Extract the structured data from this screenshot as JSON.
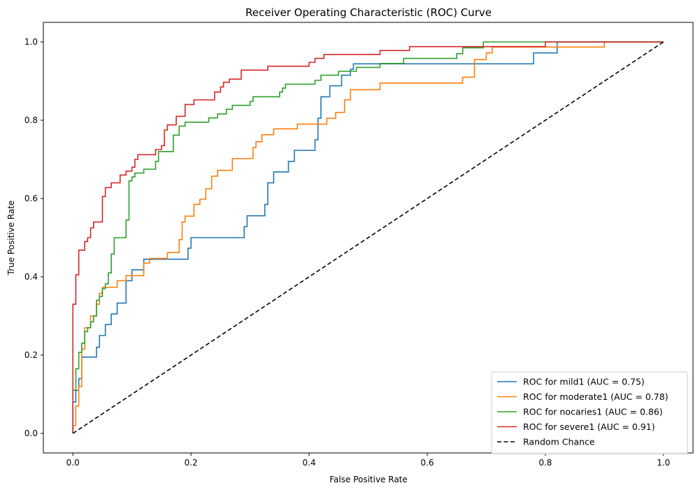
{
  "chart_data": {
    "type": "line",
    "title": "Receiver Operating Characteristic (ROC) Curve",
    "xlabel": "False Positive Rate",
    "ylabel": "True Positive Rate",
    "xlim": [
      -0.05,
      1.05
    ],
    "ylim": [
      -0.05,
      1.05
    ],
    "xticks": [
      "0.0",
      "0.2",
      "0.4",
      "0.6",
      "0.8",
      "1.0"
    ],
    "yticks": [
      "0.0",
      "0.2",
      "0.4",
      "0.6",
      "0.8",
      "1.0"
    ],
    "grid": false,
    "legend_position": "bottom-right",
    "series": [
      {
        "name": "ROC for mild1 (AUC = 0.75)",
        "color": "#1f77b4",
        "dash": "solid",
        "points": [
          [
            0,
            0
          ],
          [
            0,
            0.08
          ],
          [
            0.005,
            0.08
          ],
          [
            0.005,
            0.11
          ],
          [
            0.01,
            0.11
          ],
          [
            0.01,
            0.14
          ],
          [
            0.015,
            0.14
          ],
          [
            0.015,
            0.195
          ],
          [
            0.04,
            0.195
          ],
          [
            0.04,
            0.22
          ],
          [
            0.045,
            0.22
          ],
          [
            0.045,
            0.25
          ],
          [
            0.055,
            0.25
          ],
          [
            0.055,
            0.278
          ],
          [
            0.065,
            0.278
          ],
          [
            0.065,
            0.305
          ],
          [
            0.075,
            0.305
          ],
          [
            0.075,
            0.333
          ],
          [
            0.09,
            0.333
          ],
          [
            0.09,
            0.39
          ],
          [
            0.1,
            0.39
          ],
          [
            0.1,
            0.418
          ],
          [
            0.12,
            0.418
          ],
          [
            0.12,
            0.445
          ],
          [
            0.195,
            0.445
          ],
          [
            0.195,
            0.473
          ],
          [
            0.2,
            0.473
          ],
          [
            0.2,
            0.5
          ],
          [
            0.29,
            0.5
          ],
          [
            0.29,
            0.528
          ],
          [
            0.295,
            0.528
          ],
          [
            0.295,
            0.556
          ],
          [
            0.325,
            0.556
          ],
          [
            0.325,
            0.585
          ],
          [
            0.33,
            0.585
          ],
          [
            0.33,
            0.64
          ],
          [
            0.34,
            0.64
          ],
          [
            0.34,
            0.668
          ],
          [
            0.365,
            0.668
          ],
          [
            0.365,
            0.695
          ],
          [
            0.375,
            0.695
          ],
          [
            0.375,
            0.723
          ],
          [
            0.41,
            0.723
          ],
          [
            0.41,
            0.75
          ],
          [
            0.415,
            0.75
          ],
          [
            0.415,
            0.805
          ],
          [
            0.42,
            0.805
          ],
          [
            0.42,
            0.86
          ],
          [
            0.435,
            0.86
          ],
          [
            0.435,
            0.888
          ],
          [
            0.455,
            0.888
          ],
          [
            0.455,
            0.915
          ],
          [
            0.47,
            0.915
          ],
          [
            0.47,
            0.93
          ],
          [
            0.475,
            0.93
          ],
          [
            0.475,
            0.944
          ],
          [
            0.78,
            0.944
          ],
          [
            0.78,
            0.972
          ],
          [
            0.82,
            0.972
          ],
          [
            0.82,
            1.0
          ],
          [
            1.0,
            1.0
          ]
        ]
      },
      {
        "name": "ROC for moderate1 (AUC = 0.78)",
        "color": "#ff7f0e",
        "dash": "solid",
        "points": [
          [
            0,
            0
          ],
          [
            0,
            0.02
          ],
          [
            0.005,
            0.02
          ],
          [
            0.005,
            0.07
          ],
          [
            0.01,
            0.07
          ],
          [
            0.01,
            0.12
          ],
          [
            0.015,
            0.12
          ],
          [
            0.015,
            0.215
          ],
          [
            0.02,
            0.215
          ],
          [
            0.02,
            0.27
          ],
          [
            0.03,
            0.27
          ],
          [
            0.03,
            0.3
          ],
          [
            0.04,
            0.3
          ],
          [
            0.04,
            0.33
          ],
          [
            0.045,
            0.33
          ],
          [
            0.045,
            0.358
          ],
          [
            0.05,
            0.358
          ],
          [
            0.05,
            0.373
          ],
          [
            0.075,
            0.373
          ],
          [
            0.075,
            0.39
          ],
          [
            0.09,
            0.39
          ],
          [
            0.09,
            0.403
          ],
          [
            0.12,
            0.403
          ],
          [
            0.12,
            0.435
          ],
          [
            0.13,
            0.435
          ],
          [
            0.13,
            0.447
          ],
          [
            0.16,
            0.447
          ],
          [
            0.16,
            0.462
          ],
          [
            0.18,
            0.462
          ],
          [
            0.18,
            0.495
          ],
          [
            0.185,
            0.495
          ],
          [
            0.185,
            0.54
          ],
          [
            0.19,
            0.54
          ],
          [
            0.19,
            0.555
          ],
          [
            0.205,
            0.555
          ],
          [
            0.205,
            0.585
          ],
          [
            0.215,
            0.585
          ],
          [
            0.215,
            0.598
          ],
          [
            0.225,
            0.598
          ],
          [
            0.225,
            0.625
          ],
          [
            0.235,
            0.625
          ],
          [
            0.235,
            0.657
          ],
          [
            0.245,
            0.657
          ],
          [
            0.245,
            0.672
          ],
          [
            0.27,
            0.672
          ],
          [
            0.27,
            0.702
          ],
          [
            0.305,
            0.702
          ],
          [
            0.305,
            0.73
          ],
          [
            0.31,
            0.73
          ],
          [
            0.31,
            0.745
          ],
          [
            0.32,
            0.745
          ],
          [
            0.32,
            0.763
          ],
          [
            0.34,
            0.763
          ],
          [
            0.34,
            0.778
          ],
          [
            0.38,
            0.778
          ],
          [
            0.38,
            0.79
          ],
          [
            0.43,
            0.79
          ],
          [
            0.43,
            0.805
          ],
          [
            0.445,
            0.805
          ],
          [
            0.445,
            0.82
          ],
          [
            0.46,
            0.82
          ],
          [
            0.46,
            0.852
          ],
          [
            0.47,
            0.852
          ],
          [
            0.47,
            0.878
          ],
          [
            0.52,
            0.878
          ],
          [
            0.52,
            0.895
          ],
          [
            0.66,
            0.895
          ],
          [
            0.66,
            0.91
          ],
          [
            0.68,
            0.91
          ],
          [
            0.68,
            0.955
          ],
          [
            0.7,
            0.955
          ],
          [
            0.7,
            0.972
          ],
          [
            0.71,
            0.972
          ],
          [
            0.71,
            0.987
          ],
          [
            0.9,
            0.987
          ],
          [
            0.9,
            1.0
          ],
          [
            1.0,
            1.0
          ]
        ]
      },
      {
        "name": "ROC for nocaries1 (AUC = 0.86)",
        "color": "#2ca02c",
        "dash": "solid",
        "points": [
          [
            0,
            0
          ],
          [
            0,
            0.11
          ],
          [
            0.005,
            0.11
          ],
          [
            0.005,
            0.165
          ],
          [
            0.01,
            0.165
          ],
          [
            0.01,
            0.207
          ],
          [
            0.015,
            0.207
          ],
          [
            0.015,
            0.23
          ],
          [
            0.02,
            0.23
          ],
          [
            0.02,
            0.26
          ],
          [
            0.025,
            0.26
          ],
          [
            0.025,
            0.27
          ],
          [
            0.03,
            0.27
          ],
          [
            0.03,
            0.285
          ],
          [
            0.035,
            0.285
          ],
          [
            0.035,
            0.3
          ],
          [
            0.04,
            0.3
          ],
          [
            0.04,
            0.34
          ],
          [
            0.045,
            0.34
          ],
          [
            0.045,
            0.35
          ],
          [
            0.05,
            0.35
          ],
          [
            0.05,
            0.37
          ],
          [
            0.055,
            0.37
          ],
          [
            0.055,
            0.382
          ],
          [
            0.06,
            0.382
          ],
          [
            0.06,
            0.41
          ],
          [
            0.065,
            0.41
          ],
          [
            0.065,
            0.458
          ],
          [
            0.07,
            0.458
          ],
          [
            0.07,
            0.5
          ],
          [
            0.09,
            0.5
          ],
          [
            0.09,
            0.545
          ],
          [
            0.095,
            0.545
          ],
          [
            0.095,
            0.645
          ],
          [
            0.1,
            0.645
          ],
          [
            0.1,
            0.655
          ],
          [
            0.105,
            0.655
          ],
          [
            0.105,
            0.665
          ],
          [
            0.12,
            0.665
          ],
          [
            0.12,
            0.675
          ],
          [
            0.14,
            0.675
          ],
          [
            0.14,
            0.695
          ],
          [
            0.145,
            0.695
          ],
          [
            0.145,
            0.72
          ],
          [
            0.17,
            0.72
          ],
          [
            0.17,
            0.762
          ],
          [
            0.18,
            0.762
          ],
          [
            0.18,
            0.785
          ],
          [
            0.19,
            0.785
          ],
          [
            0.19,
            0.795
          ],
          [
            0.23,
            0.795
          ],
          [
            0.23,
            0.806
          ],
          [
            0.245,
            0.806
          ],
          [
            0.245,
            0.816
          ],
          [
            0.26,
            0.816
          ],
          [
            0.26,
            0.828
          ],
          [
            0.27,
            0.828
          ],
          [
            0.27,
            0.838
          ],
          [
            0.3,
            0.838
          ],
          [
            0.3,
            0.848
          ],
          [
            0.305,
            0.848
          ],
          [
            0.305,
            0.86
          ],
          [
            0.35,
            0.86
          ],
          [
            0.35,
            0.872
          ],
          [
            0.355,
            0.872
          ],
          [
            0.355,
            0.882
          ],
          [
            0.36,
            0.882
          ],
          [
            0.36,
            0.892
          ],
          [
            0.41,
            0.892
          ],
          [
            0.41,
            0.902
          ],
          [
            0.42,
            0.902
          ],
          [
            0.42,
            0.915
          ],
          [
            0.45,
            0.915
          ],
          [
            0.45,
            0.925
          ],
          [
            0.48,
            0.925
          ],
          [
            0.48,
            0.935
          ],
          [
            0.52,
            0.935
          ],
          [
            0.52,
            0.945
          ],
          [
            0.56,
            0.945
          ],
          [
            0.56,
            0.958
          ],
          [
            0.65,
            0.958
          ],
          [
            0.65,
            0.97
          ],
          [
            0.66,
            0.97
          ],
          [
            0.66,
            0.985
          ],
          [
            0.695,
            0.985
          ],
          [
            0.695,
            1.0
          ],
          [
            1.0,
            1.0
          ]
        ]
      },
      {
        "name": "ROC for severe1 (AUC = 0.91)",
        "color": "#d62728",
        "dash": "solid",
        "points": [
          [
            0,
            0
          ],
          [
            0,
            0.33
          ],
          [
            0.005,
            0.33
          ],
          [
            0.005,
            0.405
          ],
          [
            0.01,
            0.405
          ],
          [
            0.01,
            0.468
          ],
          [
            0.02,
            0.468
          ],
          [
            0.02,
            0.49
          ],
          [
            0.025,
            0.49
          ],
          [
            0.025,
            0.5
          ],
          [
            0.03,
            0.5
          ],
          [
            0.03,
            0.525
          ],
          [
            0.035,
            0.525
          ],
          [
            0.035,
            0.54
          ],
          [
            0.05,
            0.54
          ],
          [
            0.05,
            0.605
          ],
          [
            0.055,
            0.605
          ],
          [
            0.055,
            0.628
          ],
          [
            0.065,
            0.628
          ],
          [
            0.065,
            0.64
          ],
          [
            0.08,
            0.64
          ],
          [
            0.08,
            0.66
          ],
          [
            0.09,
            0.66
          ],
          [
            0.09,
            0.67
          ],
          [
            0.1,
            0.67
          ],
          [
            0.1,
            0.68
          ],
          [
            0.105,
            0.68
          ],
          [
            0.105,
            0.7
          ],
          [
            0.11,
            0.7
          ],
          [
            0.11,
            0.712
          ],
          [
            0.14,
            0.712
          ],
          [
            0.14,
            0.725
          ],
          [
            0.15,
            0.725
          ],
          [
            0.15,
            0.735
          ],
          [
            0.155,
            0.735
          ],
          [
            0.155,
            0.775
          ],
          [
            0.16,
            0.775
          ],
          [
            0.16,
            0.788
          ],
          [
            0.175,
            0.788
          ],
          [
            0.175,
            0.81
          ],
          [
            0.19,
            0.81
          ],
          [
            0.19,
            0.84
          ],
          [
            0.205,
            0.84
          ],
          [
            0.205,
            0.852
          ],
          [
            0.24,
            0.852
          ],
          [
            0.24,
            0.872
          ],
          [
            0.25,
            0.872
          ],
          [
            0.25,
            0.885
          ],
          [
            0.255,
            0.885
          ],
          [
            0.255,
            0.897
          ],
          [
            0.265,
            0.897
          ],
          [
            0.265,
            0.905
          ],
          [
            0.285,
            0.905
          ],
          [
            0.285,
            0.928
          ],
          [
            0.33,
            0.928
          ],
          [
            0.33,
            0.938
          ],
          [
            0.4,
            0.938
          ],
          [
            0.4,
            0.948
          ],
          [
            0.41,
            0.948
          ],
          [
            0.41,
            0.958
          ],
          [
            0.425,
            0.958
          ],
          [
            0.425,
            0.968
          ],
          [
            0.52,
            0.968
          ],
          [
            0.52,
            0.978
          ],
          [
            0.57,
            0.978
          ],
          [
            0.57,
            0.988
          ],
          [
            0.8,
            0.988
          ],
          [
            0.8,
            1.0
          ],
          [
            1.0,
            1.0
          ]
        ]
      },
      {
        "name": "Random Chance",
        "color": "#000000",
        "dash": "dashed",
        "points": [
          [
            0,
            0
          ],
          [
            1,
            1
          ]
        ]
      }
    ]
  }
}
